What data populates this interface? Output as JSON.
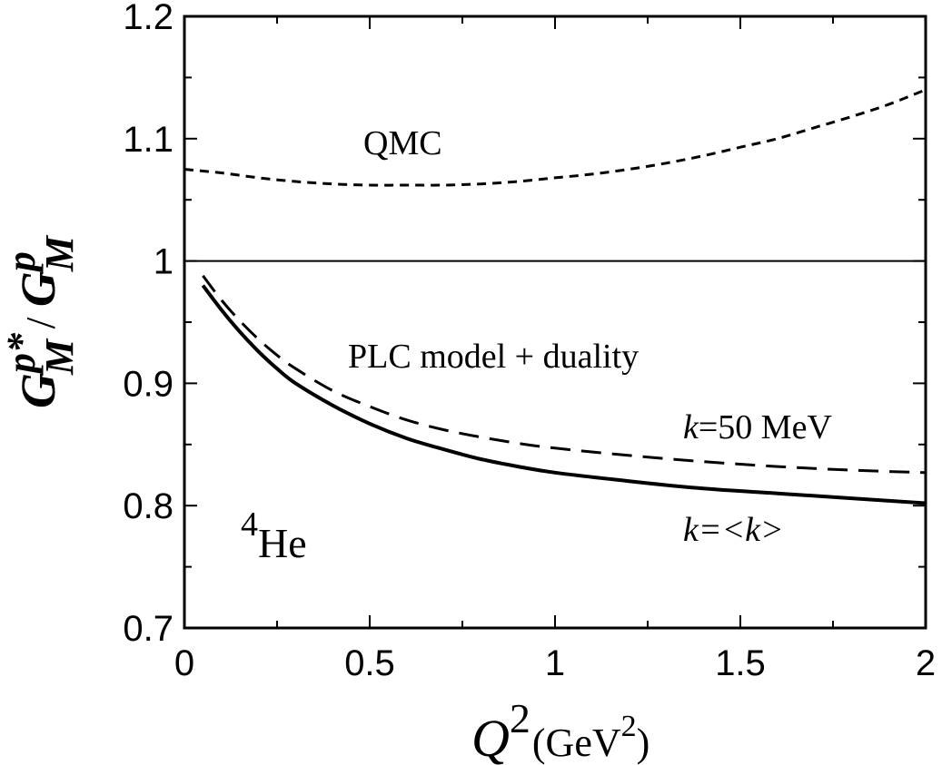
{
  "chart_data": {
    "type": "line",
    "title": "",
    "xlabel": {
      "base": "Q",
      "sup": "2",
      "unit_pre": "(GeV",
      "unit_sup": "2",
      "unit_post": ")"
    },
    "ylabel": {
      "num_base": "G",
      "num_sup": "p*",
      "num_sub": "M",
      "sep": " / ",
      "den_base": "G",
      "den_sup": "p",
      "den_sub": "M"
    },
    "xlim": [
      0,
      2
    ],
    "ylim": [
      0.7,
      1.2
    ],
    "xticks": [
      0,
      0.5,
      1,
      1.5,
      2
    ],
    "xtick_labels": [
      "0",
      "0.5",
      "1",
      "1.5",
      "2"
    ],
    "yticks": [
      0.7,
      0.8,
      0.9,
      1.0,
      1.1,
      1.2
    ],
    "ytick_labels": [
      "0.7",
      "0.8",
      "0.9",
      "1",
      "1.1",
      "1.2"
    ],
    "grid": false,
    "reference_line": {
      "y": 1.0
    },
    "series": [
      {
        "label_ref": "qmc",
        "style": "short-dash",
        "x": [
          0,
          0.1,
          0.2,
          0.3,
          0.4,
          0.5,
          0.6,
          0.7,
          0.8,
          0.9,
          1.0,
          1.1,
          1.2,
          1.3,
          1.4,
          1.5,
          1.6,
          1.7,
          1.8,
          1.9,
          2.0
        ],
        "y": [
          1.075,
          1.072,
          1.068,
          1.065,
          1.063,
          1.062,
          1.062,
          1.062,
          1.063,
          1.065,
          1.068,
          1.071,
          1.075,
          1.08,
          1.086,
          1.093,
          1.1,
          1.109,
          1.118,
          1.128,
          1.14
        ]
      },
      {
        "label_ref": "k50",
        "style": "long-dash",
        "x": [
          0.05,
          0.1,
          0.15,
          0.2,
          0.25,
          0.3,
          0.4,
          0.5,
          0.6,
          0.7,
          0.8,
          0.9,
          1.0,
          1.2,
          1.4,
          1.6,
          1.8,
          2.0
        ],
        "y": [
          0.988,
          0.968,
          0.951,
          0.936,
          0.923,
          0.912,
          0.894,
          0.881,
          0.87,
          0.862,
          0.856,
          0.851,
          0.847,
          0.841,
          0.836,
          0.832,
          0.829,
          0.827
        ]
      },
      {
        "label_ref": "kavg",
        "style": "solid",
        "x": [
          0.05,
          0.1,
          0.15,
          0.2,
          0.25,
          0.3,
          0.4,
          0.5,
          0.6,
          0.7,
          0.8,
          0.9,
          1.0,
          1.2,
          1.4,
          1.6,
          1.8,
          2.0
        ],
        "y": [
          0.98,
          0.96,
          0.942,
          0.926,
          0.912,
          0.9,
          0.882,
          0.867,
          0.855,
          0.846,
          0.838,
          0.832,
          0.827,
          0.82,
          0.814,
          0.81,
          0.806,
          0.802
        ]
      }
    ],
    "annotations": {
      "qmc": "QMC",
      "plc": "PLC model + duality",
      "k50": {
        "var": "k",
        "rest": "=50 MeV"
      },
      "kavg": {
        "var": "k",
        "eq": "=<",
        "var2": "k",
        "close": ">"
      },
      "nucleus": {
        "mass": "4",
        "symbol": "He"
      }
    }
  }
}
